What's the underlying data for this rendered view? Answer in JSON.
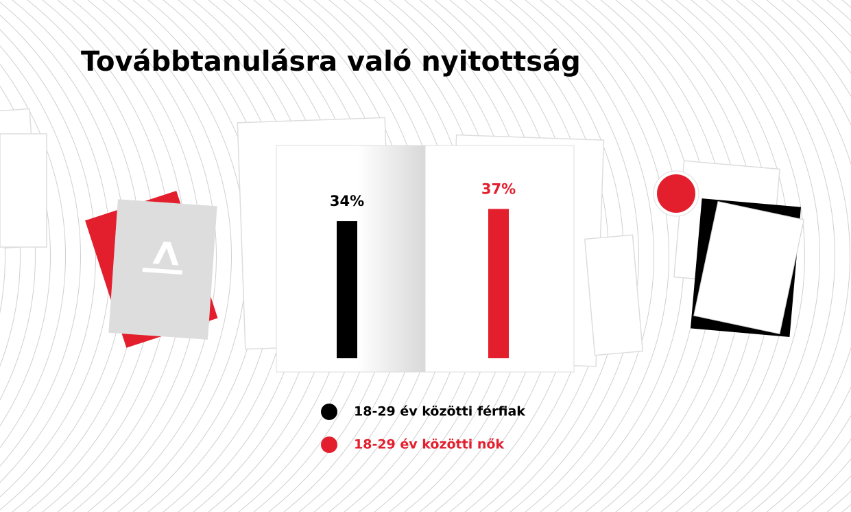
{
  "chart_data": {
    "type": "bar",
    "title": "Továbbtanulásra való nyitottság",
    "series": [
      {
        "name": "18-29 év közötti férfiak",
        "color": "#000000",
        "values": [
          34
        ],
        "value_labels": [
          "34%"
        ]
      },
      {
        "name": "18-29 év közötti nők",
        "color": "#e31e2d",
        "values": [
          37
        ],
        "value_labels": [
          "37%"
        ]
      }
    ]
  }
}
